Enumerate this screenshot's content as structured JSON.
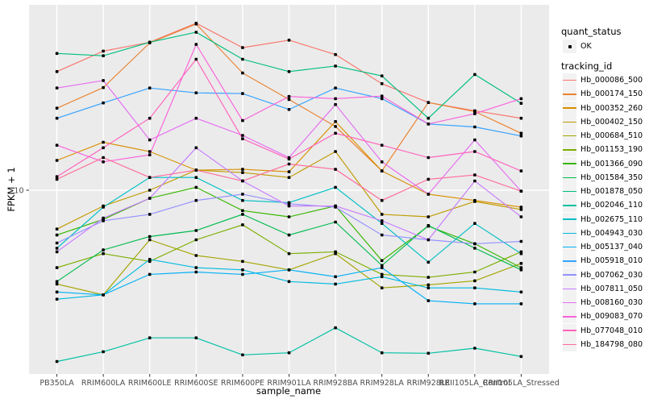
{
  "axes": {
    "x_title": "sample_name",
    "y_title": "FPKM + 1",
    "y_tick_label": "10"
  },
  "legend": {
    "quant_status": {
      "title": "quant_status",
      "items": [
        {
          "label": "OK"
        }
      ]
    },
    "tracking_id": {
      "title": "tracking_id"
    }
  },
  "colors": {
    "panel_bg": "#EBEBEB",
    "grid": "#FFFFFF",
    "tick_mark": "#333333",
    "tick_text": "#4D4D4D",
    "point": "#000000",
    "legend_key_bg": "#F2F2F2"
  },
  "chart_data": {
    "type": "line",
    "title": "",
    "xlabel": "sample_name",
    "ylabel": "FPKM + 1",
    "y_scale": "log10",
    "y_ticks": [
      10
    ],
    "ylim": [
      1.5,
      67
    ],
    "grid": "major-white-on-grey",
    "legend_position": "right",
    "point_status_legend": "OK",
    "x_categories": [
      "PB350LA",
      "RRIM600LA",
      "RRIM600LE",
      "RRIM600SE",
      "RRIM600PE",
      "RRIM901LA",
      "RRIM928BA",
      "RRIM928LA",
      "RRIM928LE",
      "RRII105LA_Control",
      "RRII105LA_Stressed"
    ],
    "series": [
      {
        "name": "Hb_000086_500",
        "color": "#F8766D",
        "values": [
          34,
          42,
          46,
          56,
          43.5,
          47,
          40.5,
          30,
          24.7,
          22.7,
          21
        ]
      },
      {
        "name": "Hb_000174_150",
        "color": "#EA8331",
        "values": [
          23.3,
          28.8,
          45.7,
          55.5,
          33.5,
          25.5,
          19.3,
          12.2,
          24.7,
          22.5,
          18
        ]
      },
      {
        "name": "Hb_000352_260",
        "color": "#D89000",
        "values": [
          13.6,
          16.4,
          14.9,
          12.3,
          12.4,
          12.1,
          20.3,
          12.2,
          9.6,
          9.0,
          8.4
        ]
      },
      {
        "name": "Hb_000402_150",
        "color": "#C09B00",
        "values": [
          6.7,
          8.5,
          10,
          12.3,
          12.0,
          11.4,
          14.9,
          7.8,
          7.6,
          8.9,
          8.2
        ]
      },
      {
        "name": "Hb_000684_510",
        "color": "#A3A500",
        "values": [
          3.8,
          3.4,
          6.0,
          5.1,
          4.8,
          4.4,
          5.2,
          3.65,
          3.77,
          3.93,
          4.7
        ]
      },
      {
        "name": "Hb_001153_190",
        "color": "#7CAE00",
        "values": [
          4.5,
          5.2,
          4.8,
          6.0,
          7.0,
          5.2,
          5.3,
          4.2,
          4.07,
          4.3,
          5.3
        ]
      },
      {
        "name": "Hb_001366_090",
        "color": "#39B600",
        "values": [
          6.3,
          7.4,
          9.2,
          10.3,
          8.1,
          7.6,
          8.5,
          4.84,
          6.9,
          5.76,
          4.5
        ]
      },
      {
        "name": "Hb_001584_350",
        "color": "#00BB4E",
        "values": [
          3.9,
          5.4,
          6.2,
          6.6,
          7.8,
          6.3,
          7.2,
          4.6,
          6.95,
          5.5,
          4.4
        ]
      },
      {
        "name": "Hb_001878_050",
        "color": "#00BF7D",
        "values": [
          41,
          40,
          46,
          51,
          38.6,
          34,
          36,
          32.5,
          21,
          33,
          24.5
        ]
      },
      {
        "name": "Hb_002046_110",
        "color": "#00C1A3",
        "values": [
          1.71,
          1.89,
          2.18,
          2.18,
          1.83,
          1.87,
          2.42,
          1.87,
          1.86,
          1.96,
          1.8
        ]
      },
      {
        "name": "Hb_002675_110",
        "color": "#00BFC4",
        "values": [
          5.5,
          8.4,
          11.4,
          11.4,
          9.0,
          8.8,
          10.3,
          7.1,
          4.76,
          7.1,
          5.2
        ]
      },
      {
        "name": "Hb_004943_030",
        "color": "#00BAE0",
        "values": [
          3.25,
          3.4,
          4.9,
          4.5,
          4.4,
          3.9,
          3.8,
          4.1,
          3.65,
          3.65,
          3.5
        ]
      },
      {
        "name": "Hb_005137_040",
        "color": "#00B0F6",
        "values": [
          3.5,
          3.4,
          4.2,
          4.3,
          4.2,
          4.4,
          4.1,
          4.5,
          3.2,
          3.1,
          3.1
        ]
      },
      {
        "name": "Hb_005918_010",
        "color": "#35A2FF",
        "values": [
          21,
          24.6,
          28.7,
          27.3,
          27.1,
          23,
          28.7,
          25.7,
          19.8,
          19.2,
          17.5
        ]
      },
      {
        "name": "Hb_007062_030",
        "color": "#9590FF",
        "values": [
          5.8,
          7.3,
          7.8,
          9.0,
          9.6,
          8.7,
          8.4,
          6.3,
          6.0,
          5.76,
          5.9
        ]
      },
      {
        "name": "Hb_007811_050",
        "color": "#C77CFF",
        "values": [
          5.3,
          7.5,
          9.2,
          15.5,
          11,
          8.5,
          8.5,
          7.3,
          6.0,
          11,
          7.6
        ]
      },
      {
        "name": "Hb_008160_030",
        "color": "#E76BF3",
        "values": [
          28.7,
          31,
          16.8,
          21,
          17.6,
          14,
          24.2,
          13.4,
          9.6,
          16.8,
          9.9
        ]
      },
      {
        "name": "Hb_009083_070",
        "color": "#FA62DB",
        "values": [
          15.9,
          13.4,
          14.4,
          45,
          20.5,
          26.3,
          25.7,
          26.4,
          19.8,
          22,
          25.7
        ]
      },
      {
        "name": "Hb_077048_010",
        "color": "#FF62BC",
        "values": [
          11.5,
          15.5,
          21,
          38.6,
          17,
          13.8,
          18,
          15.9,
          14,
          14.9,
          12.2
        ]
      },
      {
        "name": "Hb_184798_080",
        "color": "#FF6A98",
        "values": [
          11.2,
          14,
          11.4,
          12.3,
          11,
          13.1,
          12.4,
          9.0,
          11.2,
          11.7,
          9.9
        ]
      }
    ]
  }
}
